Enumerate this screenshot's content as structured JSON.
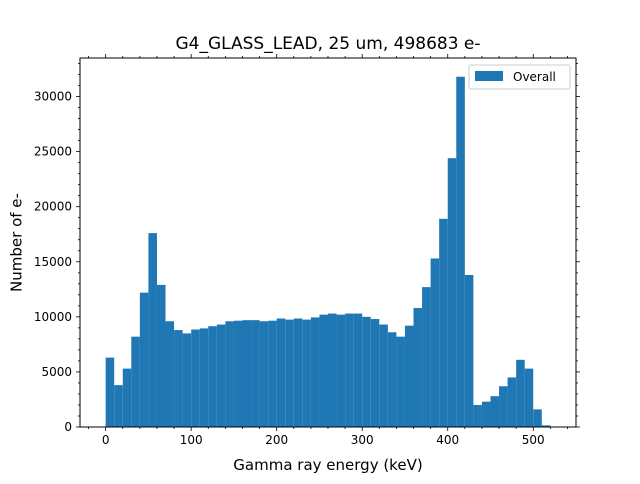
{
  "chart_data": {
    "type": "bar",
    "title": "G4_GLASS_LEAD, 25 um, 498683 e-",
    "xlabel": "Gamma ray energy (keV)",
    "ylabel": "Number of e-",
    "xlim": [
      -30,
      550
    ],
    "ylim": [
      0,
      33500
    ],
    "xticks": [
      0,
      100,
      200,
      300,
      400,
      500
    ],
    "yticks": [
      0,
      5000,
      10000,
      15000,
      20000,
      25000,
      30000
    ],
    "grid": false,
    "legend_position": "top-right",
    "bin_width": 10,
    "series": [
      {
        "name": "Overall",
        "color": "#1f77b4",
        "bin_starts": [
          0,
          10,
          20,
          30,
          40,
          50,
          60,
          70,
          80,
          90,
          100,
          110,
          120,
          130,
          140,
          150,
          160,
          170,
          180,
          190,
          200,
          210,
          220,
          230,
          240,
          250,
          260,
          270,
          280,
          290,
          300,
          310,
          320,
          330,
          340,
          350,
          360,
          370,
          380,
          390,
          400,
          410,
          420,
          430,
          440,
          450,
          460,
          470,
          480,
          490,
          500,
          510
        ],
        "values": [
          6300,
          3800,
          5300,
          8200,
          12200,
          17600,
          12900,
          9600,
          8800,
          8500,
          8850,
          8950,
          9150,
          9300,
          9600,
          9650,
          9700,
          9700,
          9600,
          9650,
          9850,
          9750,
          9850,
          9750,
          9950,
          10200,
          10300,
          10200,
          10300,
          10300,
          10000,
          9800,
          9300,
          8600,
          8200,
          9200,
          10800,
          12700,
          15300,
          18900,
          24400,
          31800,
          13800,
          2000,
          2300,
          2800,
          3700,
          4500,
          6100,
          5300,
          1600,
          150
        ]
      }
    ]
  }
}
